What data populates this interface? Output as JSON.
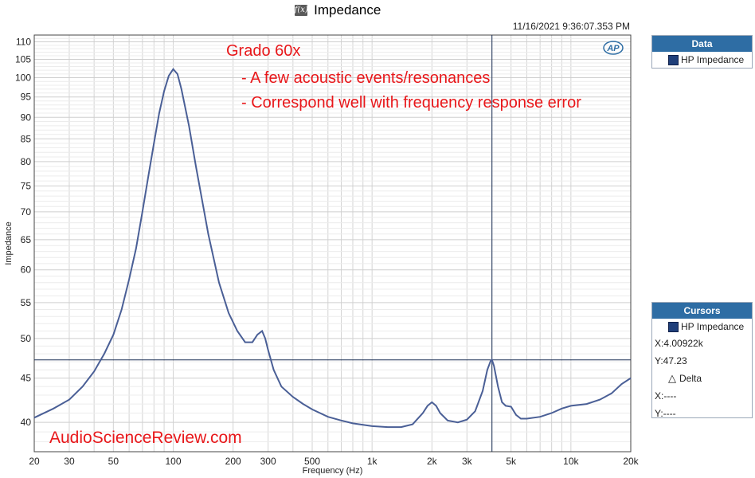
{
  "header": {
    "title": "Impedance",
    "timestamp": "11/16/2021 9:36:07.353 PM",
    "fx_icon": "function-icon",
    "ap_logo": "AP"
  },
  "panels": {
    "data_header": "Data",
    "data_item": "HP Impedance",
    "cursors_header": "Cursors",
    "cursors_item": "HP Impedance",
    "cursor_x": "X:4.00922k",
    "cursor_y": "Y:47.23",
    "delta_label": "Delta",
    "delta_x": "X:----",
    "delta_y": "Y:----"
  },
  "annotations": {
    "line1": "Grado 60x",
    "line2": "- A few acoustic events/resonances",
    "line3": "- Correspond well with frequency response error",
    "watermark": "AudioScienceReview.com"
  },
  "colors": {
    "curve": "#4a5f96",
    "annotation": "#e8171a",
    "header": "#2e6da4",
    "cursor": "#1a2e55",
    "grid": "#d4d4d4"
  },
  "chart_data": {
    "type": "line",
    "xlabel": "Frequency (Hz)",
    "ylabel": "Impedance",
    "xscale": "log",
    "yscale": "log",
    "xlim": [
      20,
      20000
    ],
    "ylim": [
      37,
      112
    ],
    "x_ticks": [
      {
        "v": 20,
        "label": "20"
      },
      {
        "v": 30,
        "label": "30"
      },
      {
        "v": 50,
        "label": "50"
      },
      {
        "v": 100,
        "label": "100"
      },
      {
        "v": 200,
        "label": "200"
      },
      {
        "v": 300,
        "label": "300"
      },
      {
        "v": 500,
        "label": "500"
      },
      {
        "v": 1000,
        "label": "1k"
      },
      {
        "v": 2000,
        "label": "2k"
      },
      {
        "v": 3000,
        "label": "3k"
      },
      {
        "v": 5000,
        "label": "5k"
      },
      {
        "v": 10000,
        "label": "10k"
      },
      {
        "v": 20000,
        "label": "20k"
      }
    ],
    "y_ticks": [
      40,
      45,
      50,
      55,
      60,
      65,
      70,
      75,
      80,
      85,
      90,
      95,
      100,
      105,
      110
    ],
    "grid": true,
    "cursor": {
      "x": 4009.22,
      "y": 47.23
    },
    "series": [
      {
        "name": "HP Impedance",
        "x": [
          20,
          25,
          30,
          35,
          40,
          45,
          50,
          55,
          60,
          65,
          70,
          75,
          80,
          85,
          90,
          95,
          100,
          105,
          110,
          120,
          130,
          140,
          150,
          170,
          190,
          210,
          230,
          250,
          265,
          280,
          290,
          300,
          320,
          350,
          400,
          450,
          500,
          600,
          700,
          800,
          1000,
          1200,
          1400,
          1600,
          1800,
          1900,
          2000,
          2100,
          2200,
          2400,
          2700,
          3000,
          3300,
          3600,
          3800,
          3950,
          4009,
          4100,
          4300,
          4500,
          4700,
          5000,
          5300,
          5600,
          6000,
          7000,
          8000,
          9000,
          10000,
          12000,
          14000,
          16000,
          18000,
          20000
        ],
        "y": [
          40.5,
          41.5,
          42.5,
          44.0,
          45.8,
          48.0,
          50.5,
          54.0,
          58.5,
          63.5,
          70.0,
          77.0,
          84.0,
          91.0,
          96.5,
          100.5,
          102.3,
          101.0,
          97.0,
          88.0,
          79.0,
          72.0,
          66.0,
          58.0,
          53.5,
          51.0,
          49.5,
          49.5,
          50.5,
          51.0,
          50.0,
          48.5,
          46.0,
          44.0,
          42.8,
          42.0,
          41.4,
          40.6,
          40.2,
          39.9,
          39.6,
          39.5,
          39.5,
          39.8,
          41.0,
          41.8,
          42.2,
          41.8,
          41.0,
          40.2,
          40.0,
          40.3,
          41.2,
          43.5,
          46.0,
          47.1,
          47.23,
          46.5,
          44.0,
          42.2,
          41.8,
          41.7,
          40.8,
          40.4,
          40.4,
          40.6,
          41.0,
          41.5,
          41.8,
          42.0,
          42.5,
          43.2,
          44.3,
          45.0
        ]
      }
    ]
  }
}
